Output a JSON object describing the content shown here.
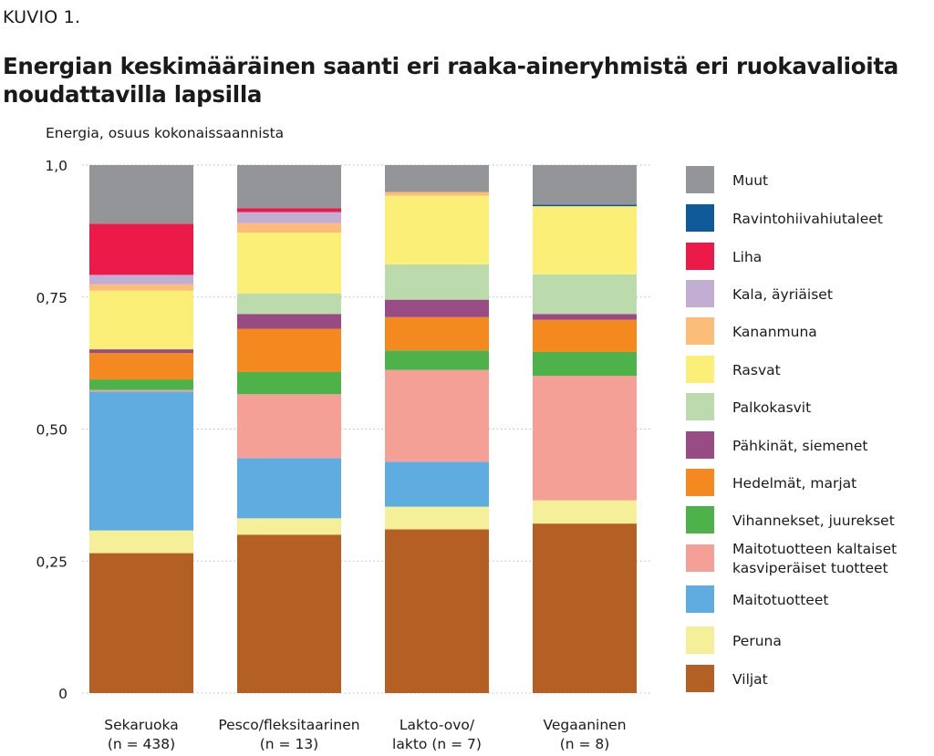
{
  "figure_label": "KUVIO 1.",
  "chart_data": {
    "type": "bar",
    "stacked": true,
    "title": "Energian keskimääräinen saanti eri raaka-aineryhmistä eri ruokavalioita noudattavilla lapsilla",
    "ylabel": "Energia, osuus kokonaissaannista",
    "ylim": [
      0,
      1.0
    ],
    "yticks": [
      0,
      0.25,
      0.5,
      0.75,
      1.0
    ],
    "ytick_labels": [
      "0",
      "0,25",
      "0,50",
      "0,75",
      "1,0"
    ],
    "grid": "horizontal-dotted",
    "legend_position": "right",
    "categories": [
      [
        "Sekaruoka",
        "(n = 438)"
      ],
      [
        "Pesco/fleksitaarinen",
        "(n = 13)"
      ],
      [
        "Lakto-ovo/",
        "lakto (n = 7)"
      ],
      [
        "Vegaaninen",
        "(n = 8)"
      ]
    ],
    "series": [
      {
        "name": "Viljat",
        "color": "#b45f23",
        "values": [
          0.265,
          0.3,
          0.31,
          0.321
        ]
      },
      {
        "name": "Peruna",
        "color": "#f5ef9a",
        "values": [
          0.043,
          0.031,
          0.043,
          0.044
        ]
      },
      {
        "name": "Maitotuotteet",
        "color": "#5fade0",
        "values": [
          0.263,
          0.114,
          0.085,
          0.0
        ]
      },
      {
        "name": [
          "Maitotuotteen kaltaiset",
          "kasviperäiset tuotteet"
        ],
        "color": "#f4a097",
        "values": [
          0.003,
          0.121,
          0.174,
          0.236
        ]
      },
      {
        "name": "Vihannekset, juurekset",
        "color": "#4db24a",
        "values": [
          0.02,
          0.042,
          0.037,
          0.045
        ]
      },
      {
        "name": "Hedelmät, marjat",
        "color": "#f4891f",
        "values": [
          0.05,
          0.082,
          0.063,
          0.061
        ]
      },
      {
        "name": "Pähkinät, siemenet",
        "color": "#994b84",
        "values": [
          0.007,
          0.028,
          0.033,
          0.011
        ]
      },
      {
        "name": "Palkokasvit",
        "color": "#bcdbac",
        "values": [
          0.0,
          0.039,
          0.067,
          0.075
        ]
      },
      {
        "name": "Rasvat",
        "color": "#fcef78",
        "values": [
          0.111,
          0.115,
          0.13,
          0.129
        ]
      },
      {
        "name": "Kananmuna",
        "color": "#fbbd78",
        "values": [
          0.012,
          0.018,
          0.007,
          0.0
        ]
      },
      {
        "name": "Kala, äyriäiset",
        "color": "#c3aed3",
        "values": [
          0.018,
          0.021,
          0.0,
          0.0
        ]
      },
      {
        "name": "Liha",
        "color": "#eb1a48",
        "values": [
          0.097,
          0.007,
          0.0,
          0.0
        ]
      },
      {
        "name": "Ravintohiivahiutaleet",
        "color": "#0f5a99",
        "values": [
          0.0,
          0.0,
          0.0,
          0.003
        ]
      },
      {
        "name": "Muut",
        "color": "#939598",
        "values": [
          0.111,
          0.082,
          0.051,
          0.075
        ]
      }
    ]
  }
}
